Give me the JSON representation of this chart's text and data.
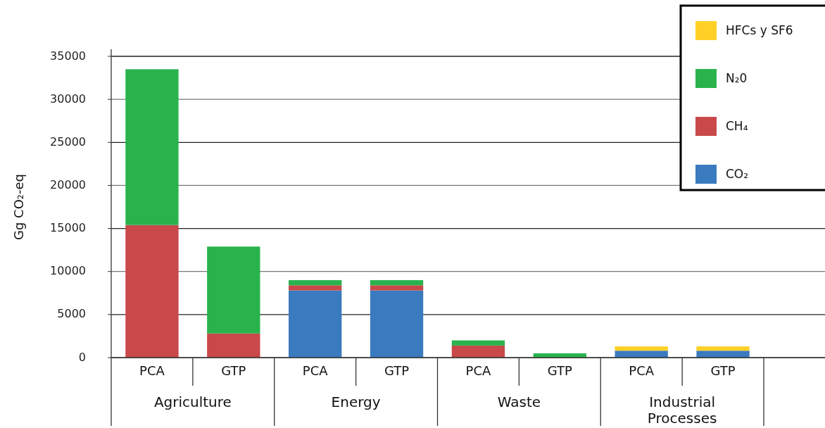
{
  "chart_data": {
    "type": "bar",
    "stacked": true,
    "ylabel": "Gg CO₂-eq",
    "categories": [
      "PCA",
      "GTP",
      "PCA",
      "GTP",
      "PCA",
      "GTP",
      "PCA",
      "GTP"
    ],
    "annotations": [
      "Agriculture",
      "Energy",
      "Waste",
      "Industrial Processes"
    ],
    "series": [
      {
        "name": "CO₂",
        "color": "#3a7abf",
        "values": [
          null,
          null,
          7800,
          7800,
          null,
          null,
          800,
          800
        ]
      },
      {
        "name": "CH₄",
        "color": "#c9484a",
        "values": [
          15400,
          2800,
          600,
          600,
          1400,
          null,
          null,
          null
        ]
      },
      {
        "name": "N₂0",
        "color": "#2ab34d",
        "values": [
          18100,
          10100,
          600,
          600,
          600,
          500,
          null,
          null
        ]
      },
      {
        "name": "HFCs y SF6",
        "color": "#ffd126",
        "values": [
          null,
          null,
          null,
          null,
          null,
          null,
          500,
          500
        ]
      }
    ],
    "ylim": [
      0,
      35000
    ],
    "yticks": [
      0,
      5000,
      10000,
      15000,
      20000,
      25000,
      30000,
      35000
    ],
    "grid": "y",
    "legend": "top right"
  }
}
